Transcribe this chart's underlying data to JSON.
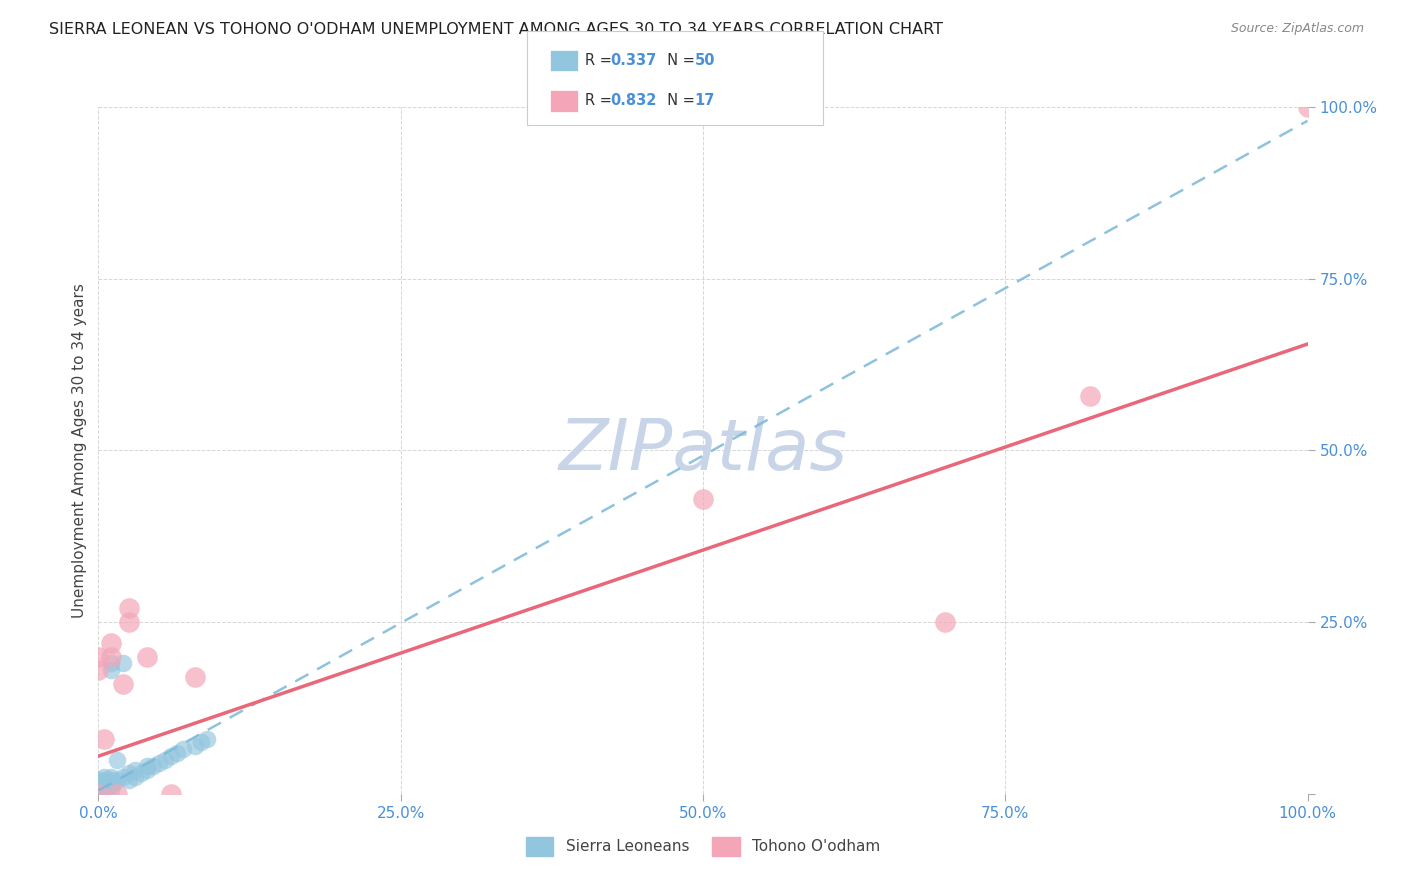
{
  "title": "SIERRA LEONEAN VS TOHONO O'ODHAM UNEMPLOYMENT AMONG AGES 30 TO 34 YEARS CORRELATION CHART",
  "source": "Source: ZipAtlas.com",
  "ylabel": "Unemployment Among Ages 30 to 34 years",
  "watermark": "ZIPatlas",
  "xlim": [
    0,
    1.0
  ],
  "ylim": [
    0,
    1.0
  ],
  "xticks": [
    0.0,
    0.25,
    0.5,
    0.75,
    1.0
  ],
  "yticks": [
    0.0,
    0.25,
    0.5,
    0.75,
    1.0
  ],
  "xtick_labels": [
    "0.0%",
    "25.0%",
    "50.0%",
    "75.0%",
    "100.0%"
  ],
  "ytick_labels": [
    "",
    "25.0%",
    "50.0%",
    "75.0%",
    "100.0%"
  ],
  "sierra_color": "#92c5de",
  "tohono_color": "#f4a6b8",
  "sierra_line_color": "#7ab8d8",
  "tohono_line_color": "#e8687a",
  "sierra_scatter_x": [
    0.0,
    0.0,
    0.0,
    0.0,
    0.0,
    0.0,
    0.0,
    0.0,
    0.0,
    0.0,
    0.0,
    0.0,
    0.0,
    0.0,
    0.0,
    0.0,
    0.0,
    0.0,
    0.0,
    0.0,
    0.005,
    0.005,
    0.005,
    0.008,
    0.01,
    0.01,
    0.01,
    0.01,
    0.012,
    0.015,
    0.015,
    0.02,
    0.02,
    0.025,
    0.025,
    0.03,
    0.03,
    0.035,
    0.04,
    0.04,
    0.045,
    0.05,
    0.055,
    0.06,
    0.065,
    0.07,
    0.08,
    0.085,
    0.09,
    0.01
  ],
  "sierra_scatter_y": [
    0.0,
    0.0,
    0.0,
    0.0,
    0.0,
    0.0,
    0.0,
    0.0,
    0.0,
    0.0,
    0.0,
    0.0,
    0.005,
    0.005,
    0.007,
    0.01,
    0.01,
    0.01,
    0.015,
    0.02,
    0.015,
    0.02,
    0.025,
    0.01,
    0.02,
    0.025,
    0.18,
    0.19,
    0.015,
    0.02,
    0.05,
    0.025,
    0.19,
    0.02,
    0.03,
    0.025,
    0.035,
    0.03,
    0.035,
    0.04,
    0.04,
    0.045,
    0.05,
    0.055,
    0.06,
    0.065,
    0.07,
    0.075,
    0.08,
    0.005
  ],
  "tohono_scatter_x": [
    0.0,
    0.0,
    0.0,
    0.005,
    0.01,
    0.01,
    0.015,
    0.02,
    0.025,
    0.025,
    0.04,
    0.06,
    0.08,
    0.5,
    0.7,
    0.82,
    1.0
  ],
  "tohono_scatter_y": [
    0.0,
    0.18,
    0.2,
    0.08,
    0.2,
    0.22,
    0.0,
    0.16,
    0.25,
    0.27,
    0.2,
    0.0,
    0.17,
    0.43,
    0.25,
    0.58,
    1.0
  ],
  "sierra_trend_x": [
    0.0,
    1.0
  ],
  "sierra_trend_y": [
    0.005,
    0.98
  ],
  "tohono_trend_x": [
    0.0,
    1.0
  ],
  "tohono_trend_y": [
    0.055,
    0.655
  ],
  "background_color": "#ffffff",
  "grid_color": "#cccccc",
  "title_fontsize": 11.5,
  "axis_label_fontsize": 11,
  "tick_fontsize": 11,
  "watermark_color": "#c8d4e8",
  "watermark_fontsize": 52,
  "legend_r1": "0.337",
  "legend_n1": "50",
  "legend_r2": "0.832",
  "legend_n2": "17"
}
